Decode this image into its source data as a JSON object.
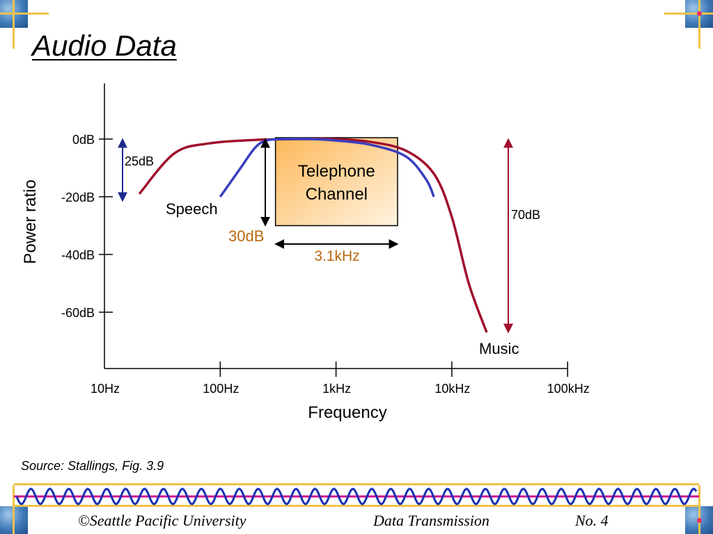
{
  "slide": {
    "title": "Audio Data",
    "source_note": "Source: Stallings, Fig. 3.9"
  },
  "footer": {
    "left": "©Seattle Pacific University",
    "center": "Data Transmission",
    "right": "No. 4"
  },
  "colors": {
    "music": "#a0102c",
    "speech": "#3a3ec0",
    "channel_box_start": "#fdb85a",
    "channel_box_end": "#fff3e0",
    "annotation_orange": "#b8690f",
    "accent_gold": "#f0c24a",
    "corner_blue": "#3f79b8",
    "wave_magenta": "#d01090",
    "wave_blue": "#1830b0"
  },
  "chart_data": {
    "type": "line",
    "title": "",
    "xlabel": "Frequency",
    "ylabel": "Power ratio",
    "x_scale": "log",
    "x_ticks": [
      {
        "value": 10,
        "label": "10Hz"
      },
      {
        "value": 100,
        "label": "100Hz"
      },
      {
        "value": 1000,
        "label": "1kHz"
      },
      {
        "value": 10000,
        "label": "10kHz"
      },
      {
        "value": 100000,
        "label": "100kHz"
      }
    ],
    "y_ticks": [
      {
        "value": 0,
        "label": "0dB"
      },
      {
        "value": -20,
        "label": "-20dB"
      },
      {
        "value": -40,
        "label": "-40dB"
      },
      {
        "value": -60,
        "label": "-60dB"
      }
    ],
    "xlim": [
      10,
      100000
    ],
    "ylim": [
      -80,
      20
    ],
    "grid": false,
    "series": [
      {
        "name": "Music",
        "x": [
          20,
          40,
          80,
          200,
          500,
          1000,
          2000,
          4000,
          7000,
          10000,
          14000,
          20000
        ],
        "y": [
          -19,
          -5,
          -1.5,
          -0.3,
          0,
          0,
          -1,
          -4,
          -12,
          -27,
          -50,
          -67
        ]
      },
      {
        "name": "Speech",
        "x": [
          100,
          150,
          200,
          250,
          350,
          600,
          1000,
          2000,
          4000,
          6000,
          7000
        ],
        "y": [
          -20,
          -10,
          -3,
          -0.5,
          0,
          0,
          -0.5,
          -2,
          -6,
          -14,
          -20
        ]
      }
    ],
    "annotations": {
      "channel_label": "Telephone\nChannel",
      "channel_x_range": [
        300,
        3400
      ],
      "channel_y_range": [
        -30,
        0
      ],
      "bandwidth_label": "3.1kHz",
      "speech_range_label": "30dB",
      "speech_range_x": 250,
      "speech_range_y": [
        0,
        -30
      ],
      "music_dynamic_label": "25dB",
      "music_dynamic_x": 25,
      "music_dynamic_y": [
        0,
        -20
      ],
      "music_range_label": "70dB",
      "music_range_x": 30000,
      "music_range_y": [
        0,
        -67
      ]
    }
  }
}
